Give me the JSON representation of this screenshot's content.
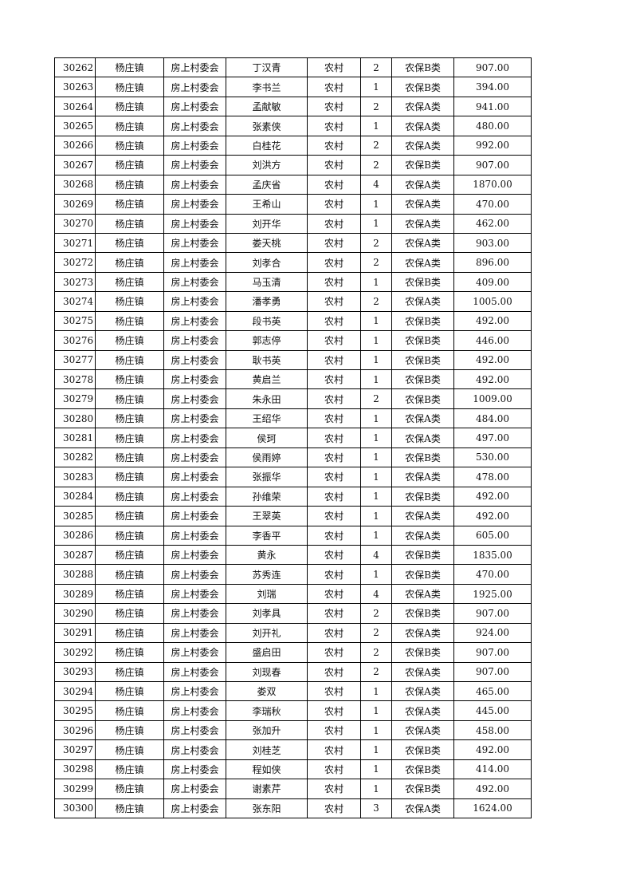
{
  "table": {
    "rows": [
      [
        "30262",
        "杨庄镇",
        "房上村委会",
        "丁汉青",
        "农村",
        "2",
        "农保B类",
        "907.00"
      ],
      [
        "30263",
        "杨庄镇",
        "房上村委会",
        "李书兰",
        "农村",
        "1",
        "农保B类",
        "394.00"
      ],
      [
        "30264",
        "杨庄镇",
        "房上村委会",
        "孟献敏",
        "农村",
        "2",
        "农保A类",
        "941.00"
      ],
      [
        "30265",
        "杨庄镇",
        "房上村委会",
        "张素侠",
        "农村",
        "1",
        "农保A类",
        "480.00"
      ],
      [
        "30266",
        "杨庄镇",
        "房上村委会",
        "白桂花",
        "农村",
        "2",
        "农保A类",
        "992.00"
      ],
      [
        "30267",
        "杨庄镇",
        "房上村委会",
        "刘洪方",
        "农村",
        "2",
        "农保B类",
        "907.00"
      ],
      [
        "30268",
        "杨庄镇",
        "房上村委会",
        "孟庆省",
        "农村",
        "4",
        "农保A类",
        "1870.00"
      ],
      [
        "30269",
        "杨庄镇",
        "房上村委会",
        "王希山",
        "农村",
        "1",
        "农保A类",
        "470.00"
      ],
      [
        "30270",
        "杨庄镇",
        "房上村委会",
        "刘开华",
        "农村",
        "1",
        "农保A类",
        "462.00"
      ],
      [
        "30271",
        "杨庄镇",
        "房上村委会",
        "娄天桃",
        "农村",
        "2",
        "农保A类",
        "903.00"
      ],
      [
        "30272",
        "杨庄镇",
        "房上村委会",
        "刘孝合",
        "农村",
        "2",
        "农保A类",
        "896.00"
      ],
      [
        "30273",
        "杨庄镇",
        "房上村委会",
        "马玉清",
        "农村",
        "1",
        "农保B类",
        "409.00"
      ],
      [
        "30274",
        "杨庄镇",
        "房上村委会",
        "潘孝勇",
        "农村",
        "2",
        "农保A类",
        "1005.00"
      ],
      [
        "30275",
        "杨庄镇",
        "房上村委会",
        "段书英",
        "农村",
        "1",
        "农保B类",
        "492.00"
      ],
      [
        "30276",
        "杨庄镇",
        "房上村委会",
        "郭志停",
        "农村",
        "1",
        "农保B类",
        "446.00"
      ],
      [
        "30277",
        "杨庄镇",
        "房上村委会",
        "耿书英",
        "农村",
        "1",
        "农保B类",
        "492.00"
      ],
      [
        "30278",
        "杨庄镇",
        "房上村委会",
        "黄启兰",
        "农村",
        "1",
        "农保B类",
        "492.00"
      ],
      [
        "30279",
        "杨庄镇",
        "房上村委会",
        "朱永田",
        "农村",
        "2",
        "农保B类",
        "1009.00"
      ],
      [
        "30280",
        "杨庄镇",
        "房上村委会",
        "王绍华",
        "农村",
        "1",
        "农保A类",
        "484.00"
      ],
      [
        "30281",
        "杨庄镇",
        "房上村委会",
        "侯珂",
        "农村",
        "1",
        "农保A类",
        "497.00"
      ],
      [
        "30282",
        "杨庄镇",
        "房上村委会",
        "侯雨婷",
        "农村",
        "1",
        "农保B类",
        "530.00"
      ],
      [
        "30283",
        "杨庄镇",
        "房上村委会",
        "张振华",
        "农村",
        "1",
        "农保A类",
        "478.00"
      ],
      [
        "30284",
        "杨庄镇",
        "房上村委会",
        "孙维荣",
        "农村",
        "1",
        "农保B类",
        "492.00"
      ],
      [
        "30285",
        "杨庄镇",
        "房上村委会",
        "王翠英",
        "农村",
        "1",
        "农保A类",
        "492.00"
      ],
      [
        "30286",
        "杨庄镇",
        "房上村委会",
        "李香平",
        "农村",
        "1",
        "农保A类",
        "605.00"
      ],
      [
        "30287",
        "杨庄镇",
        "房上村委会",
        "黄永",
        "农村",
        "4",
        "农保B类",
        "1835.00"
      ],
      [
        "30288",
        "杨庄镇",
        "房上村委会",
        "苏秀连",
        "农村",
        "1",
        "农保B类",
        "470.00"
      ],
      [
        "30289",
        "杨庄镇",
        "房上村委会",
        "刘瑞",
        "农村",
        "4",
        "农保A类",
        "1925.00"
      ],
      [
        "30290",
        "杨庄镇",
        "房上村委会",
        "刘孝具",
        "农村",
        "2",
        "农保B类",
        "907.00"
      ],
      [
        "30291",
        "杨庄镇",
        "房上村委会",
        "刘开礼",
        "农村",
        "2",
        "农保A类",
        "924.00"
      ],
      [
        "30292",
        "杨庄镇",
        "房上村委会",
        "盛启田",
        "农村",
        "2",
        "农保B类",
        "907.00"
      ],
      [
        "30293",
        "杨庄镇",
        "房上村委会",
        "刘现春",
        "农村",
        "2",
        "农保A类",
        "907.00"
      ],
      [
        "30294",
        "杨庄镇",
        "房上村委会",
        "娄双",
        "农村",
        "1",
        "农保A类",
        "465.00"
      ],
      [
        "30295",
        "杨庄镇",
        "房上村委会",
        "李瑞秋",
        "农村",
        "1",
        "农保A类",
        "445.00"
      ],
      [
        "30296",
        "杨庄镇",
        "房上村委会",
        "张加升",
        "农村",
        "1",
        "农保A类",
        "458.00"
      ],
      [
        "30297",
        "杨庄镇",
        "房上村委会",
        "刘桂芝",
        "农村",
        "1",
        "农保B类",
        "492.00"
      ],
      [
        "30298",
        "杨庄镇",
        "房上村委会",
        "程如侠",
        "农村",
        "1",
        "农保B类",
        "414.00"
      ],
      [
        "30299",
        "杨庄镇",
        "房上村委会",
        "谢素芹",
        "农村",
        "1",
        "农保B类",
        "492.00"
      ],
      [
        "30300",
        "杨庄镇",
        "房上村委会",
        "张东阳",
        "农村",
        "3",
        "农保A类",
        "1624.00"
      ]
    ]
  }
}
